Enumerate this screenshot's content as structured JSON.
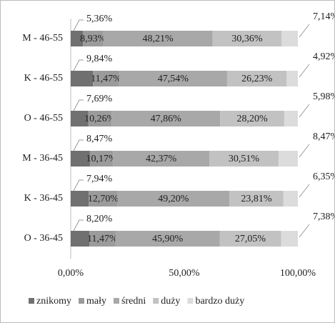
{
  "chart_data": {
    "type": "stacked-bar-horizontal",
    "categories": [
      "M - 46-55",
      "K - 46-55",
      "O - 46-55",
      "M - 36-45",
      "K - 36-45",
      "O - 36-45"
    ],
    "series": [
      {
        "name": "znikomy",
        "color": "#707070",
        "values": [
          5.36,
          9.84,
          7.69,
          8.47,
          7.94,
          8.2
        ],
        "value_labels": [
          "5,36%",
          "9,84%",
          "7,69%",
          "8,47%",
          "7,94%",
          "8,20%"
        ]
      },
      {
        "name": "mały",
        "color": "#9b9b9b",
        "values": [
          8.93,
          11.47,
          10.26,
          10.17,
          12.7,
          11.47
        ],
        "value_labels": [
          "8,93%",
          "11,47%",
          "10,26%",
          "10,17%",
          "12,70%",
          "11,47%"
        ]
      },
      {
        "name": "średni",
        "color": "#a8a8a8",
        "values": [
          48.21,
          47.54,
          47.86,
          42.37,
          49.2,
          45.9
        ],
        "value_labels": [
          "48,21%",
          "47,54%",
          "47,86%",
          "42,37%",
          "49,20%",
          "45,90%"
        ]
      },
      {
        "name": "duży",
        "color": "#c2c2c2",
        "values": [
          30.36,
          26.23,
          28.2,
          30.51,
          23.81,
          27.05
        ],
        "value_labels": [
          "30,36%",
          "26,23%",
          "28,20%",
          "30,51%",
          "23,81%",
          "27,05%"
        ]
      },
      {
        "name": "bardzo duży",
        "color": "#dcdcdc",
        "values": [
          7.14,
          4.92,
          5.98,
          8.47,
          6.35,
          7.38
        ],
        "value_labels": [
          "7,14%",
          "4,92%",
          "5,98%",
          "8,47%",
          "6,35%",
          "7,38%"
        ]
      }
    ],
    "xlim": [
      0,
      100
    ],
    "xticks": [
      {
        "value": 0,
        "label": "0,00%"
      },
      {
        "value": 50,
        "label": "50,00%"
      },
      {
        "value": 100,
        "label": "100,00%"
      }
    ],
    "grid": false,
    "legend": "bottom"
  }
}
